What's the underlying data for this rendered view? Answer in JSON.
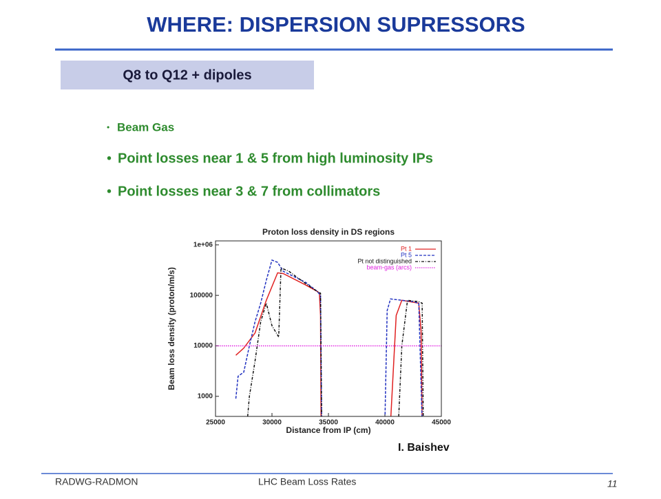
{
  "header": {
    "title": "WHERE: DISPERSION SUPRESSORS"
  },
  "subtitle": "Q8 to Q12 + dipoles",
  "bullets": [
    "Beam Gas",
    "Point losses near 1 & 5 from high luminosity IPs",
    "Point losses near 3 & 7 from collimators"
  ],
  "chart_data": {
    "type": "line",
    "title": "Proton loss density in DS regions",
    "x_label": "Distance from IP (cm)",
    "y_label": "Beam loss density (proton/m/s)",
    "xlim": [
      25000,
      45000
    ],
    "xticks": [
      25000,
      30000,
      35000,
      40000,
      45000
    ],
    "ylim": [
      400,
      1200000
    ],
    "log_y": true,
    "yticks": [
      1000,
      10000,
      100000,
      {
        "value": 1000000,
        "label": "1e+06"
      }
    ],
    "grid": false,
    "legend": "upper right",
    "series": [
      {
        "name": "Pt 1",
        "color": "#e02020",
        "style": "solid",
        "x": [
          26800,
          27500,
          28500,
          29500,
          30500,
          31000,
          33000,
          34000,
          34200,
          34300,
          34350,
          null,
          40500,
          41000,
          41500,
          43000,
          43200,
          43300
        ],
        "values": [
          6500,
          9000,
          18000,
          80000,
          280000,
          270000,
          160000,
          120000,
          110000,
          40000,
          300,
          null,
          300,
          40000,
          80000,
          70000,
          20000,
          300
        ]
      },
      {
        "name": "Pt 5",
        "color": "#2030c0",
        "style": "dashed",
        "x": [
          26800,
          27000,
          27500,
          28000,
          28500,
          29000,
          29500,
          30000,
          30500,
          31000,
          33000,
          34000,
          34300,
          34400,
          null,
          40000,
          40200,
          40500,
          41500,
          42500,
          43000,
          43300
        ],
        "values": [
          900,
          2500,
          3000,
          10000,
          30000,
          70000,
          200000,
          500000,
          450000,
          300000,
          180000,
          120000,
          100000,
          300,
          null,
          300,
          50000,
          85000,
          80000,
          75000,
          70000,
          300
        ]
      },
      {
        "name": "Pt not distinguished",
        "color": "#111111",
        "style": "dashdot",
        "x": [
          27800,
          28000,
          28500,
          29000,
          29500,
          30000,
          30600,
          30800,
          31500,
          33000,
          34000,
          34300,
          34400,
          null,
          41200,
          41500,
          42000,
          43000,
          43300,
          43400
        ],
        "values": [
          300,
          1000,
          5000,
          30000,
          70000,
          25000,
          15000,
          350000,
          300000,
          170000,
          120000,
          110000,
          300,
          null,
          300,
          10000,
          80000,
          75000,
          70000,
          300
        ]
      },
      {
        "name": "beam-gas (arcs)",
        "color": "#e020e0",
        "style": "dotted",
        "x": [
          25000,
          45000
        ],
        "values": [
          10000,
          10000
        ]
      }
    ]
  },
  "credit": "I. Baishev",
  "footer": {
    "left": "RADWG-RADMON",
    "center": "LHC Beam Loss Rates",
    "page": "11"
  }
}
